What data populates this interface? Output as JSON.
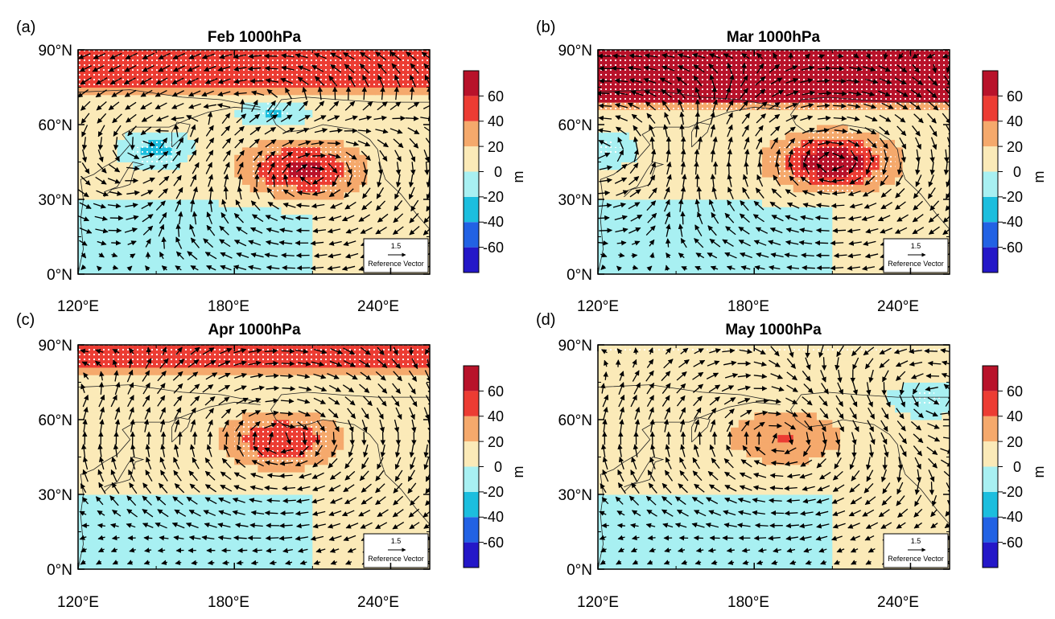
{
  "figure": {
    "panels": [
      {
        "letter": "(a)",
        "title": "Feb 1000hPa",
        "anticyclone": {
          "lon": 206,
          "lat": 42,
          "amplitude_m": 60,
          "significant": true
        },
        "cyclones": [
          {
            "lon": 150,
            "lat": 50,
            "amplitude_m": -35
          },
          {
            "lon": 195,
            "lat": 65,
            "amplitude_m": -30
          }
        ],
        "polar_band": {
          "from_lat": 75,
          "amplitude_m": 45
        }
      },
      {
        "letter": "(b)",
        "title": "Mar 1000hPa",
        "anticyclone": {
          "lon": 210,
          "lat": 45,
          "amplitude_m": 70,
          "significant": true
        },
        "cyclones": [
          {
            "lon": 122,
            "lat": 50,
            "amplitude_m": -25
          }
        ],
        "polar_band": {
          "from_lat": 70,
          "amplitude_m": 70
        }
      },
      {
        "letter": "(c)",
        "title": "Apr 1000hPa",
        "anticyclone": {
          "lon": 198,
          "lat": 52,
          "amplitude_m": 50,
          "significant": true
        },
        "cyclones": [],
        "polar_band": {
          "from_lat": 80,
          "amplitude_m": 35
        }
      },
      {
        "letter": "(d)",
        "title": "May 1000hPa",
        "anticyclone": {
          "lon": 192,
          "lat": 53,
          "amplitude_m": 35,
          "significant": false
        },
        "cyclones": [
          {
            "lon": 245,
            "lat": 68,
            "amplitude_m": -25
          }
        ],
        "polar_band": {
          "from_lat": 85,
          "amplitude_m": 10
        }
      }
    ],
    "axes": {
      "lat_labels": [
        "90°N",
        "60°N",
        "30°N",
        "0°N"
      ],
      "lat_values": [
        90,
        60,
        30,
        0
      ],
      "lon_labels": [
        "120°E",
        "180°E",
        "240°E"
      ],
      "lon_values": [
        120,
        180,
        240
      ],
      "lon_range": [
        120,
        255
      ],
      "lat_range": [
        0,
        90
      ]
    },
    "colorbar": {
      "unit": "m",
      "labels": [
        "60",
        "40",
        "20",
        "0",
        "-20",
        "-40",
        "-60"
      ],
      "levels": [
        -80,
        -60,
        -40,
        -20,
        0,
        20,
        40,
        60,
        80
      ],
      "colors": [
        "#2417c8",
        "#2262e4",
        "#1cbede",
        "#a8f0f2",
        "#fbeab8",
        "#f5a96c",
        "#ec3c33",
        "#b8122a"
      ]
    },
    "reference_vector": {
      "magnitude": "1.5",
      "label": "Reference Vector"
    }
  }
}
